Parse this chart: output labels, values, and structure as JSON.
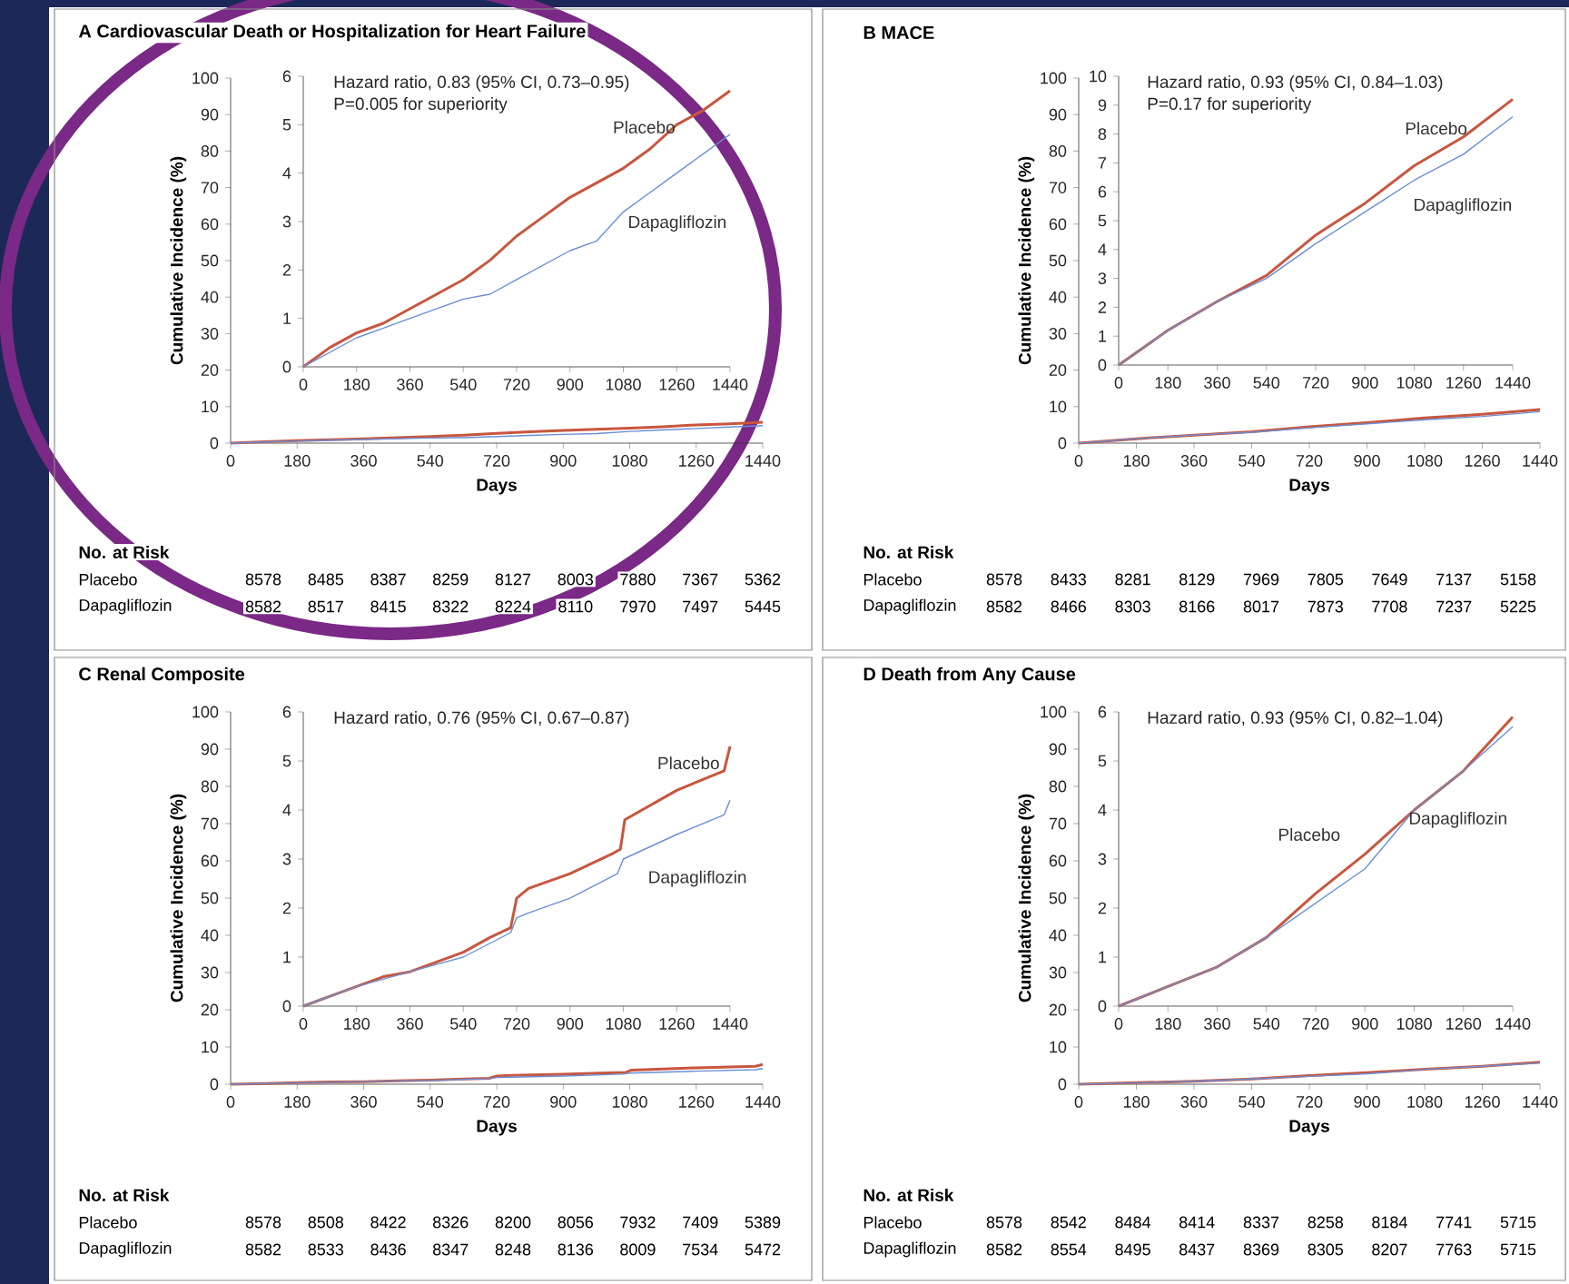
{
  "chart_data": [
    {
      "type": "line",
      "title": "A Cardiovascular Death or Hospitalization for Heart Failure",
      "xlabel": "Days",
      "ylabel": "Cumulative Incidence (%)",
      "xlim": [
        0,
        1440
      ],
      "ylim": [
        0,
        100
      ],
      "xticks": [
        0,
        180,
        360,
        540,
        720,
        900,
        1080,
        1260,
        1440
      ],
      "yticks": [
        0,
        10,
        20,
        30,
        40,
        50,
        60,
        70,
        80,
        90,
        100
      ],
      "series": [
        {
          "color": "#c8553d",
          "x": [
            0,
            90,
            180,
            270,
            360,
            450,
            540,
            630,
            720,
            810,
            900,
            990,
            1080,
            1170,
            1260,
            1350,
            1440
          ],
          "values": [
            0,
            0.4,
            0.7,
            0.9,
            1.2,
            1.5,
            1.8,
            2.2,
            2.7,
            3.1,
            3.5,
            3.8,
            4.1,
            4.5,
            5.0,
            5.3,
            5.7
          ]
        },
        {
          "color": "#6a8fd6",
          "x": [
            0,
            90,
            180,
            270,
            360,
            450,
            540,
            630,
            720,
            810,
            900,
            990,
            1080,
            1170,
            1260,
            1350,
            1440
          ],
          "values": [
            0,
            0.3,
            0.6,
            0.8,
            1.0,
            1.2,
            1.4,
            1.5,
            1.8,
            2.1,
            2.4,
            2.6,
            3.2,
            3.6,
            4.0,
            4.4,
            4.8
          ]
        }
      ],
      "annotations": [
        "No. at Risk",
        "Placebo",
        "8578",
        "8485",
        "8387",
        "8259",
        "8127",
        "8003",
        "7880",
        "7367",
        "5362",
        "Dapagliflozin",
        "8582",
        "8517",
        "8415",
        "8322",
        "8224",
        "8110",
        "7970",
        "7497",
        "5445"
      ]
    },
    {
      "type": "line",
      "xlim": [
        0,
        1440
      ],
      "ylim": [
        0,
        6
      ],
      "xticks": [
        0,
        180,
        360,
        540,
        720,
        900,
        1080,
        1260,
        1440
      ],
      "yticks": [
        0,
        1,
        2,
        3,
        4,
        5,
        6
      ],
      "series": [
        {
          "name": "Placebo",
          "color": "#c8553d",
          "x": [
            0,
            90,
            180,
            270,
            360,
            450,
            540,
            630,
            720,
            810,
            900,
            990,
            1080,
            1170,
            1260,
            1350,
            1440
          ],
          "values": [
            0,
            0.4,
            0.7,
            0.9,
            1.2,
            1.5,
            1.8,
            2.2,
            2.7,
            3.1,
            3.5,
            3.8,
            4.1,
            4.5,
            5.0,
            5.3,
            5.7
          ]
        },
        {
          "name": "Dapagliflozin",
          "color": "#6a8fd6",
          "x": [
            0,
            90,
            180,
            270,
            360,
            450,
            540,
            630,
            720,
            810,
            900,
            990,
            1080,
            1170,
            1260,
            1350,
            1440
          ],
          "values": [
            0,
            0.3,
            0.6,
            0.8,
            1.0,
            1.2,
            1.4,
            1.5,
            1.8,
            2.1,
            2.4,
            2.6,
            3.2,
            3.6,
            4.0,
            4.4,
            4.8
          ]
        }
      ],
      "annotations": [
        "Hazard ratio, 0.83 (95% CI, 0.73–0.95)",
        "P=0.005 for superiority"
      ]
    },
    {
      "type": "line",
      "title": "B MACE",
      "xlabel": "Days",
      "ylabel": "Cumulative Incidence (%)",
      "xlim": [
        0,
        1440
      ],
      "ylim": [
        0,
        100
      ],
      "xticks": [
        0,
        180,
        360,
        540,
        720,
        900,
        1080,
        1260,
        1440
      ],
      "yticks": [
        0,
        10,
        20,
        30,
        40,
        50,
        60,
        70,
        80,
        90,
        100
      ],
      "series": [
        {
          "color": "#c8553d",
          "x": [
            0,
            180,
            360,
            540,
            720,
            900,
            1080,
            1260,
            1440
          ],
          "values": [
            0,
            1.2,
            2.2,
            3.1,
            4.5,
            5.6,
            6.9,
            7.9,
            9.2
          ]
        },
        {
          "color": "#6a8fd6",
          "x": [
            0,
            180,
            360,
            540,
            720,
            900,
            1080,
            1260,
            1440
          ],
          "values": [
            0,
            1.2,
            2.2,
            3.0,
            4.2,
            5.3,
            6.4,
            7.3,
            8.6
          ]
        }
      ],
      "annotations": [
        "No. at Risk",
        "Placebo",
        "8578",
        "8433",
        "8281",
        "8129",
        "7969",
        "7805",
        "7649",
        "7137",
        "5158",
        "Dapagliflozin",
        "8582",
        "8466",
        "8303",
        "8166",
        "8017",
        "7873",
        "7708",
        "7237",
        "5225"
      ]
    },
    {
      "type": "line",
      "xlim": [
        0,
        1440
      ],
      "ylim": [
        0,
        10
      ],
      "xticks": [
        0,
        180,
        360,
        540,
        720,
        900,
        1080,
        1260,
        1440
      ],
      "yticks": [
        0,
        1,
        2,
        3,
        4,
        5,
        6,
        7,
        8,
        9,
        10
      ],
      "series": [
        {
          "name": "Placebo",
          "color": "#c8553d",
          "x": [
            0,
            180,
            360,
            540,
            720,
            900,
            1080,
            1260,
            1440
          ],
          "values": [
            0,
            1.2,
            2.2,
            3.1,
            4.5,
            5.6,
            6.9,
            7.9,
            9.2
          ]
        },
        {
          "name": "Dapagliflozin",
          "color": "#6a8fd6",
          "x": [
            0,
            180,
            360,
            540,
            720,
            900,
            1080,
            1260,
            1440
          ],
          "values": [
            0,
            1.2,
            2.2,
            3.0,
            4.2,
            5.3,
            6.4,
            7.3,
            8.6
          ]
        }
      ],
      "annotations": [
        "Hazard ratio, 0.93 (95% CI, 0.84–1.03)",
        "P=0.17 for superiority"
      ]
    },
    {
      "type": "line",
      "title": "C Renal Composite",
      "xlabel": "Days",
      "ylabel": "Cumulative Incidence (%)",
      "xlim": [
        0,
        1440
      ],
      "ylim": [
        0,
        100
      ],
      "xticks": [
        0,
        180,
        360,
        540,
        720,
        900,
        1080,
        1260,
        1440
      ],
      "yticks": [
        0,
        10,
        20,
        30,
        40,
        50,
        60,
        70,
        80,
        90,
        100
      ],
      "series": [
        {
          "color": "#c8553d",
          "x": [
            0,
            90,
            180,
            270,
            360,
            450,
            540,
            630,
            700,
            720,
            760,
            900,
            1040,
            1070,
            1085,
            1260,
            1420,
            1440
          ],
          "values": [
            0,
            0.2,
            0.4,
            0.6,
            0.7,
            0.9,
            1.1,
            1.4,
            1.6,
            2.2,
            2.4,
            2.7,
            3.1,
            3.2,
            3.8,
            4.4,
            4.8,
            5.3
          ]
        },
        {
          "color": "#6a8fd6",
          "x": [
            0,
            180,
            360,
            540,
            700,
            720,
            760,
            900,
            1060,
            1080,
            1260,
            1420,
            1440
          ],
          "values": [
            0,
            0.4,
            0.7,
            1.0,
            1.5,
            1.8,
            1.9,
            2.2,
            2.7,
            3.0,
            3.5,
            3.9,
            4.2
          ]
        }
      ],
      "annotations": [
        "No. at Risk",
        "Placebo",
        "8578",
        "8508",
        "8422",
        "8326",
        "8200",
        "8056",
        "7932",
        "7409",
        "5389",
        "Dapagliflozin",
        "8582",
        "8533",
        "8436",
        "8347",
        "8248",
        "8136",
        "8009",
        "7534",
        "5472"
      ]
    },
    {
      "type": "line",
      "xlim": [
        0,
        1440
      ],
      "ylim": [
        0,
        6
      ],
      "xticks": [
        0,
        180,
        360,
        540,
        720,
        900,
        1080,
        1260,
        1440
      ],
      "yticks": [
        0,
        1,
        2,
        3,
        4,
        5,
        6
      ],
      "series": [
        {
          "name": "Placebo",
          "color": "#c8553d",
          "x": [
            0,
            90,
            180,
            270,
            360,
            450,
            540,
            630,
            700,
            720,
            760,
            900,
            1040,
            1070,
            1085,
            1260,
            1420,
            1440
          ],
          "values": [
            0,
            0.2,
            0.4,
            0.6,
            0.7,
            0.9,
            1.1,
            1.4,
            1.6,
            2.2,
            2.4,
            2.7,
            3.1,
            3.2,
            3.8,
            4.4,
            4.8,
            5.3
          ]
        },
        {
          "name": "Dapagliflozin",
          "color": "#6a8fd6",
          "x": [
            0,
            180,
            360,
            540,
            700,
            720,
            760,
            900,
            1060,
            1080,
            1260,
            1420,
            1440
          ],
          "values": [
            0,
            0.4,
            0.7,
            1.0,
            1.5,
            1.8,
            1.9,
            2.2,
            2.7,
            3.0,
            3.5,
            3.9,
            4.2
          ]
        }
      ],
      "annotations": [
        "Hazard ratio, 0.76 (95% CI, 0.67–0.87)"
      ]
    },
    {
      "type": "line",
      "title": "D Death from Any Cause",
      "xlabel": "Days",
      "ylabel": "Cumulative Incidence (%)",
      "xlim": [
        0,
        1440
      ],
      "ylim": [
        0,
        100
      ],
      "xticks": [
        0,
        180,
        360,
        540,
        720,
        900,
        1080,
        1260,
        1440
      ],
      "yticks": [
        0,
        10,
        20,
        30,
        40,
        50,
        60,
        70,
        80,
        90,
        100
      ],
      "series": [
        {
          "color": "#c8553d",
          "x": [
            0,
            180,
            360,
            540,
            720,
            900,
            1080,
            1260,
            1440
          ],
          "values": [
            0,
            0.4,
            0.8,
            1.4,
            2.3,
            3.1,
            4.0,
            4.8,
            5.9
          ]
        },
        {
          "color": "#6a8fd6",
          "x": [
            0,
            180,
            360,
            540,
            720,
            900,
            1080,
            1260,
            1440
          ],
          "values": [
            0,
            0.4,
            0.8,
            1.4,
            2.1,
            2.8,
            4.0,
            4.8,
            5.7
          ]
        }
      ],
      "annotations": [
        "No. at Risk",
        "Placebo",
        "8578",
        "8542",
        "8484",
        "8414",
        "8337",
        "8258",
        "8184",
        "7741",
        "5715",
        "Dapagliflozin",
        "8582",
        "8554",
        "8495",
        "8437",
        "8369",
        "8305",
        "8207",
        "7763",
        "5715"
      ]
    },
    {
      "type": "line",
      "xlim": [
        0,
        1440
      ],
      "ylim": [
        0,
        6
      ],
      "xticks": [
        0,
        180,
        360,
        540,
        720,
        900,
        1080,
        1260,
        1440
      ],
      "yticks": [
        0,
        1,
        2,
        3,
        4,
        5,
        6
      ],
      "series": [
        {
          "name": "Placebo",
          "color": "#c8553d",
          "x": [
            0,
            180,
            360,
            540,
            720,
            900,
            1080,
            1260,
            1440
          ],
          "values": [
            0,
            0.4,
            0.8,
            1.4,
            2.3,
            3.1,
            4.0,
            4.8,
            5.9
          ]
        },
        {
          "name": "Dapagliflozin",
          "color": "#6a8fd6",
          "x": [
            0,
            180,
            360,
            540,
            720,
            900,
            1080,
            1260,
            1440
          ],
          "values": [
            0,
            0.4,
            0.8,
            1.4,
            2.1,
            2.8,
            4.0,
            4.8,
            5.7
          ]
        }
      ],
      "annotations": [
        "Hazard ratio, 0.93 (95% CI, 0.82–1.04)"
      ]
    }
  ]
}
